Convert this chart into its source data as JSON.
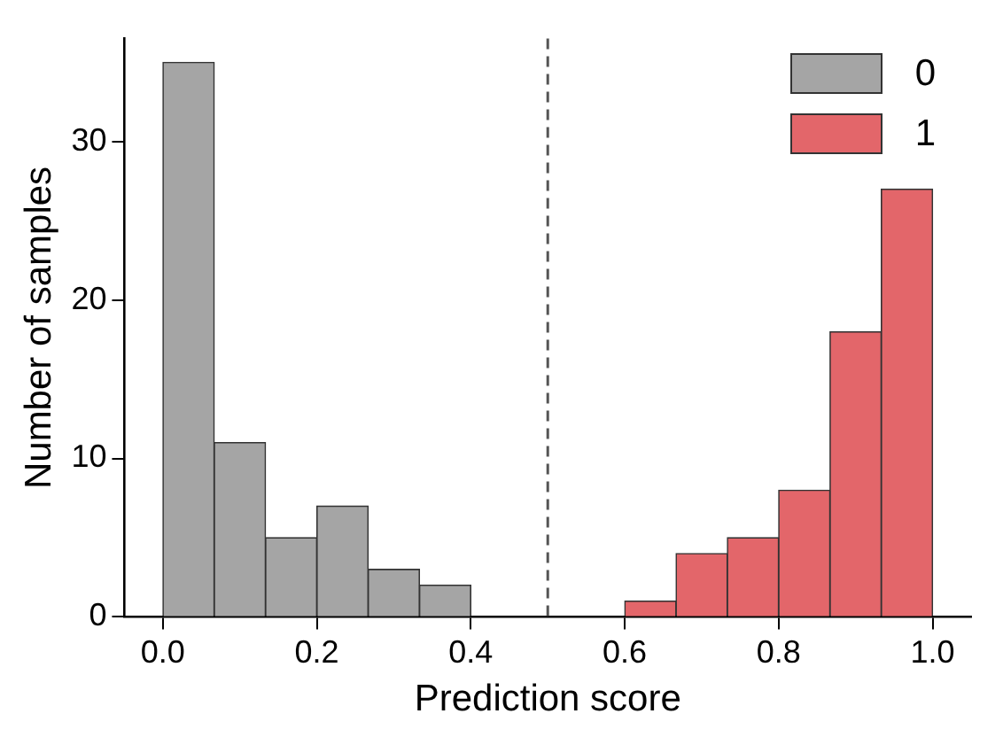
{
  "chart_data": {
    "type": "histogram",
    "xlabel": "Prediction score",
    "ylabel": "Number of samples",
    "bins": [
      0,
      0.0667,
      0.1333,
      0.2,
      0.2667,
      0.3333,
      0.4,
      0.4667,
      0.5333,
      0.6,
      0.6667,
      0.7333,
      0.8,
      0.8667,
      0.9333,
      1.0
    ],
    "series": [
      {
        "name": "0",
        "color": "#a5a5a5",
        "values": [
          35,
          11,
          5,
          7,
          3,
          2,
          null,
          null,
          null,
          null,
          null,
          null,
          null,
          null,
          null
        ]
      },
      {
        "name": "1",
        "color": "#e3666a",
        "values": [
          null,
          null,
          null,
          null,
          null,
          null,
          null,
          null,
          null,
          1,
          4,
          5,
          8,
          18,
          27
        ]
      }
    ],
    "xlim": [
      -0.05,
      1.05
    ],
    "xticks": [
      {
        "value": 0,
        "label": "0.0"
      },
      {
        "value": 0.2,
        "label": "0.2"
      },
      {
        "value": 0.4,
        "label": "0.4"
      },
      {
        "value": 0.6,
        "label": "0.6"
      },
      {
        "value": 0.8,
        "label": "0.8"
      },
      {
        "value": 1,
        "label": "1.0"
      }
    ],
    "ylim": [
      0,
      36.5
    ],
    "yticks": [
      0,
      10,
      20,
      30
    ],
    "ref_lines": [
      {
        "axis": "x",
        "value": 0.5,
        "color": "#555555",
        "line_style": "dashed"
      }
    ],
    "grid": false,
    "legend": "top right"
  }
}
